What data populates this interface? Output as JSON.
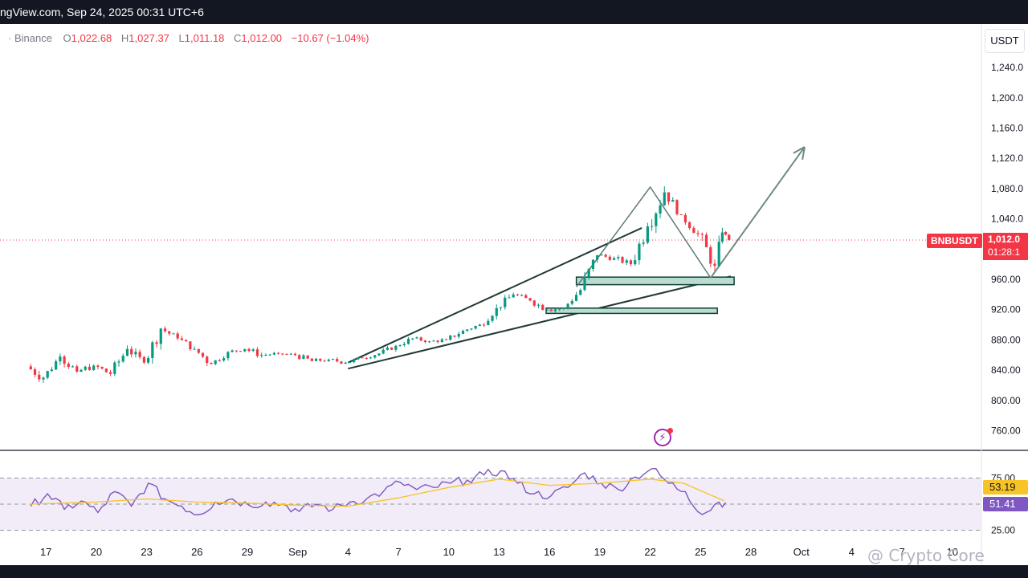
{
  "header": {
    "source_text": "ngView.com, Sep 24, 2025 00:31 UTC+6"
  },
  "legend": {
    "exchange": "· Binance",
    "open_label": "O",
    "open": "1,022.68",
    "high_label": "H",
    "high": "1,027.37",
    "low_label": "L",
    "low": "1,011.18",
    "close_label": "C",
    "close": "1,012.00",
    "change": "−10.67 (−1.04%)"
  },
  "price_axis": {
    "currency_button": "USDT",
    "ticks": [
      {
        "value": 1240,
        "label": "1,240.0"
      },
      {
        "value": 1200,
        "label": "1,200.0"
      },
      {
        "value": 1160,
        "label": "1,160.0"
      },
      {
        "value": 1120,
        "label": "1,120.0"
      },
      {
        "value": 1080,
        "label": "1,080.0"
      },
      {
        "value": 1040,
        "label": "1,040.0"
      },
      {
        "value": 960,
        "label": "960.00"
      },
      {
        "value": 920,
        "label": "920.00"
      },
      {
        "value": 880,
        "label": "880.00"
      },
      {
        "value": 840,
        "label": "840.00"
      },
      {
        "value": 800,
        "label": "800.00"
      },
      {
        "value": 760,
        "label": "760.00"
      }
    ]
  },
  "current_price": {
    "symbol_label": "BNBUSDT",
    "price": "1,012.0",
    "countdown": "01:28:1",
    "value": 1012
  },
  "rsi_panel": {
    "ticks": [
      {
        "value": 75,
        "label": "75.00"
      },
      {
        "value": 25,
        "label": "25.00"
      }
    ],
    "ma_value": "53.19",
    "rsi_value": "51.41"
  },
  "time_axis": {
    "ticks": [
      {
        "t": -2,
        "label": "17"
      },
      {
        "t": 1,
        "label": "20"
      },
      {
        "t": 4,
        "label": "23"
      },
      {
        "t": 7,
        "label": "26"
      },
      {
        "t": 10,
        "label": "29"
      },
      {
        "t": 13,
        "label": "Sep"
      },
      {
        "t": 16,
        "label": "4"
      },
      {
        "t": 19,
        "label": "7"
      },
      {
        "t": 22,
        "label": "10"
      },
      {
        "t": 25,
        "label": "13"
      },
      {
        "t": 28,
        "label": "16"
      },
      {
        "t": 31,
        "label": "19"
      },
      {
        "t": 34,
        "label": "22"
      },
      {
        "t": 37,
        "label": "25"
      },
      {
        "t": 40,
        "label": "28"
      },
      {
        "t": 43,
        "label": "Oct"
      },
      {
        "t": 46,
        "label": "4"
      },
      {
        "t": 49,
        "label": "7"
      },
      {
        "t": 52,
        "label": "10"
      }
    ]
  },
  "watermark": "@ Crypto Core",
  "chart_data": {
    "type": "candlestick",
    "title": "",
    "ylabel": "",
    "ylim": [
      740,
      1270
    ],
    "x_units": "days (0 = Aug 20)",
    "ohlc_daily": [
      {
        "t": -3,
        "o": 845,
        "h": 855,
        "l": 815,
        "c": 830
      },
      {
        "t": -2,
        "o": 830,
        "h": 862,
        "l": 828,
        "c": 858
      },
      {
        "t": -1,
        "o": 858,
        "h": 864,
        "l": 830,
        "c": 838
      },
      {
        "t": 0,
        "o": 838,
        "h": 852,
        "l": 826,
        "c": 846
      },
      {
        "t": 1,
        "o": 846,
        "h": 852,
        "l": 822,
        "c": 835
      },
      {
        "t": 2,
        "o": 835,
        "h": 875,
        "l": 832,
        "c": 868
      },
      {
        "t": 3,
        "o": 868,
        "h": 872,
        "l": 840,
        "c": 850
      },
      {
        "t": 4,
        "o": 850,
        "h": 900,
        "l": 848,
        "c": 895
      },
      {
        "t": 5,
        "o": 895,
        "h": 898,
        "l": 875,
        "c": 882
      },
      {
        "t": 6,
        "o": 882,
        "h": 888,
        "l": 862,
        "c": 868
      },
      {
        "t": 7,
        "o": 868,
        "h": 872,
        "l": 836,
        "c": 848
      },
      {
        "t": 8,
        "o": 848,
        "h": 870,
        "l": 846,
        "c": 864
      },
      {
        "t": 9,
        "o": 864,
        "h": 872,
        "l": 858,
        "c": 868
      },
      {
        "t": 10,
        "o": 868,
        "h": 880,
        "l": 856,
        "c": 860
      },
      {
        "t": 11,
        "o": 860,
        "h": 866,
        "l": 854,
        "c": 862
      },
      {
        "t": 12,
        "o": 862,
        "h": 868,
        "l": 856,
        "c": 860
      },
      {
        "t": 13,
        "o": 860,
        "h": 866,
        "l": 846,
        "c": 852
      },
      {
        "t": 14,
        "o": 852,
        "h": 858,
        "l": 842,
        "c": 854
      },
      {
        "t": 15,
        "o": 854,
        "h": 864,
        "l": 848,
        "c": 850
      },
      {
        "t": 16,
        "o": 850,
        "h": 858,
        "l": 842,
        "c": 856
      },
      {
        "t": 17,
        "o": 856,
        "h": 866,
        "l": 852,
        "c": 862
      },
      {
        "t": 18,
        "o": 862,
        "h": 876,
        "l": 858,
        "c": 872
      },
      {
        "t": 19,
        "o": 872,
        "h": 888,
        "l": 868,
        "c": 882
      },
      {
        "t": 20,
        "o": 882,
        "h": 886,
        "l": 872,
        "c": 878
      },
      {
        "t": 21,
        "o": 878,
        "h": 884,
        "l": 870,
        "c": 880
      },
      {
        "t": 22,
        "o": 880,
        "h": 896,
        "l": 876,
        "c": 892
      },
      {
        "t": 23,
        "o": 892,
        "h": 904,
        "l": 888,
        "c": 900
      },
      {
        "t": 24,
        "o": 900,
        "h": 930,
        "l": 896,
        "c": 922
      },
      {
        "t": 25,
        "o": 922,
        "h": 946,
        "l": 918,
        "c": 940
      },
      {
        "t": 26,
        "o": 940,
        "h": 944,
        "l": 925,
        "c": 932
      },
      {
        "t": 27,
        "o": 932,
        "h": 936,
        "l": 912,
        "c": 920
      },
      {
        "t": 28,
        "o": 920,
        "h": 926,
        "l": 908,
        "c": 922
      },
      {
        "t": 29,
        "o": 922,
        "h": 950,
        "l": 920,
        "c": 946
      },
      {
        "t": 30,
        "o": 946,
        "h": 1000,
        "l": 940,
        "c": 992
      },
      {
        "t": 31,
        "o": 992,
        "h": 1000,
        "l": 980,
        "c": 988
      },
      {
        "t": 32,
        "o": 988,
        "h": 996,
        "l": 974,
        "c": 980
      },
      {
        "t": 33,
        "o": 980,
        "h": 1040,
        "l": 978,
        "c": 1030
      },
      {
        "t": 34,
        "o": 1030,
        "h": 1083,
        "l": 1020,
        "c": 1075
      },
      {
        "t": 35,
        "o": 1075,
        "h": 1078,
        "l": 1040,
        "c": 1045
      },
      {
        "t": 36,
        "o": 1045,
        "h": 1050,
        "l": 1015,
        "c": 1020
      },
      {
        "t": 37,
        "o": 1020,
        "h": 1022,
        "l": 962,
        "c": 978
      },
      {
        "t": 38,
        "o": 978,
        "h": 1030,
        "l": 970,
        "c": 1022
      },
      {
        "t": 38.4,
        "o": 1022.68,
        "h": 1027.37,
        "l": 1011.18,
        "c": 1012.0
      }
    ],
    "rsi": {
      "ylim": [
        15,
        85
      ],
      "upper_band": 75,
      "middle_band": 50,
      "lower_band": 25,
      "rsi_values": [
        {
          "t": -3,
          "v": 48
        },
        {
          "t": -2,
          "v": 60
        },
        {
          "t": -1,
          "v": 45
        },
        {
          "t": 0,
          "v": 53
        },
        {
          "t": 1,
          "v": 42
        },
        {
          "t": 2,
          "v": 62
        },
        {
          "t": 3,
          "v": 48
        },
        {
          "t": 4,
          "v": 70
        },
        {
          "t": 5,
          "v": 55
        },
        {
          "t": 6,
          "v": 48
        },
        {
          "t": 7,
          "v": 40
        },
        {
          "t": 8,
          "v": 52
        },
        {
          "t": 9,
          "v": 55
        },
        {
          "t": 10,
          "v": 49
        },
        {
          "t": 11,
          "v": 52
        },
        {
          "t": 12,
          "v": 50
        },
        {
          "t": 13,
          "v": 43
        },
        {
          "t": 14,
          "v": 50
        },
        {
          "t": 15,
          "v": 45
        },
        {
          "t": 16,
          "v": 52
        },
        {
          "t": 17,
          "v": 55
        },
        {
          "t": 18,
          "v": 62
        },
        {
          "t": 19,
          "v": 71
        },
        {
          "t": 20,
          "v": 64
        },
        {
          "t": 21,
          "v": 66
        },
        {
          "t": 22,
          "v": 70
        },
        {
          "t": 23,
          "v": 73
        },
        {
          "t": 24,
          "v": 78
        },
        {
          "t": 25,
          "v": 82
        },
        {
          "t": 26,
          "v": 70
        },
        {
          "t": 27,
          "v": 60
        },
        {
          "t": 28,
          "v": 58
        },
        {
          "t": 29,
          "v": 66
        },
        {
          "t": 30,
          "v": 80
        },
        {
          "t": 31,
          "v": 70
        },
        {
          "t": 32,
          "v": 64
        },
        {
          "t": 33,
          "v": 76
        },
        {
          "t": 34,
          "v": 84
        },
        {
          "t": 35,
          "v": 70
        },
        {
          "t": 36,
          "v": 62
        },
        {
          "t": 37,
          "v": 40
        },
        {
          "t": 38,
          "v": 52
        },
        {
          "t": 38.4,
          "v": 51.41
        }
      ],
      "ma_values": [
        {
          "t": -3,
          "v": 50
        },
        {
          "t": 1,
          "v": 52
        },
        {
          "t": 4,
          "v": 55
        },
        {
          "t": 7,
          "v": 52
        },
        {
          "t": 10,
          "v": 51
        },
        {
          "t": 13,
          "v": 49
        },
        {
          "t": 16,
          "v": 48
        },
        {
          "t": 19,
          "v": 56
        },
        {
          "t": 22,
          "v": 66
        },
        {
          "t": 25,
          "v": 74
        },
        {
          "t": 28,
          "v": 68
        },
        {
          "t": 31,
          "v": 70
        },
        {
          "t": 34,
          "v": 74
        },
        {
          "t": 36,
          "v": 70
        },
        {
          "t": 38.4,
          "v": 53.19
        }
      ]
    },
    "drawings": {
      "wedge_upper": [
        {
          "t": 16,
          "v": 850
        },
        {
          "t": 33.5,
          "v": 1028
        }
      ],
      "wedge_lower": [
        {
          "t": 16,
          "v": 842
        },
        {
          "t": 38.8,
          "v": 964
        }
      ],
      "spike_path": [
        {
          "t": 29.6,
          "v": 950
        },
        {
          "t": 34,
          "v": 1082
        },
        {
          "t": 37.6,
          "v": 962
        }
      ],
      "projection_arrow": [
        {
          "t": 37.6,
          "v": 962
        },
        {
          "t": 43.2,
          "v": 1135
        }
      ],
      "zones": [
        {
          "t1": 29.6,
          "t2": 39,
          "v1": 963,
          "v2": 953
        },
        {
          "t1": 27.8,
          "t2": 38,
          "v1": 922,
          "v2": 915
        }
      ]
    }
  }
}
